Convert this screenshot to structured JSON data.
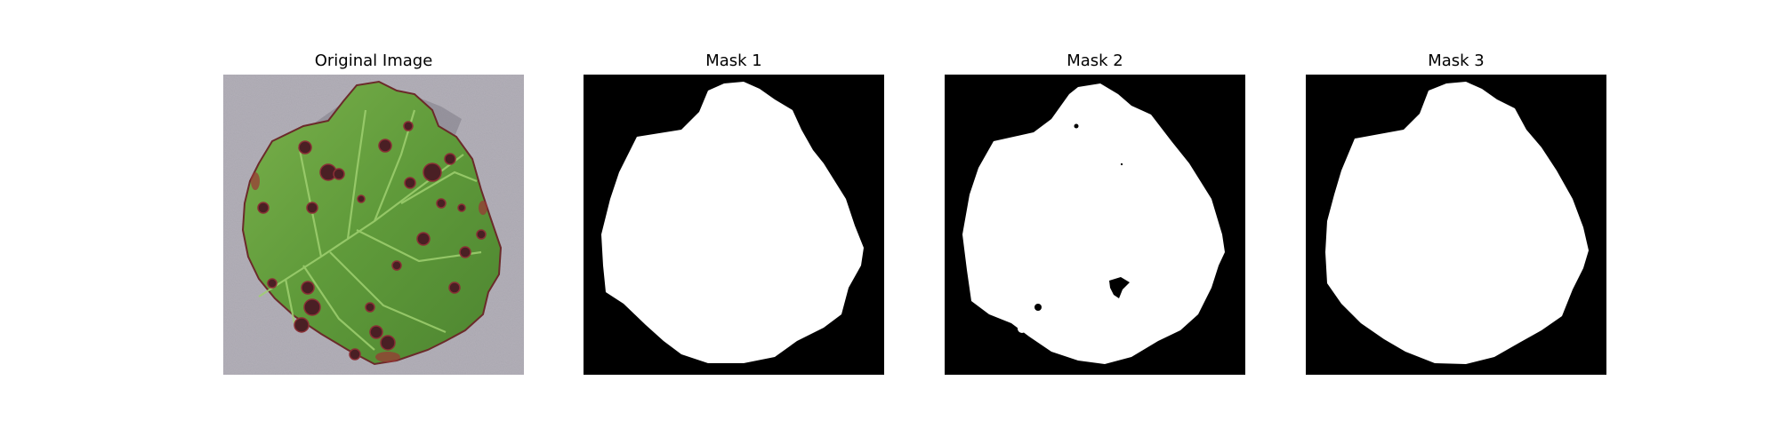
{
  "figure": {
    "panels": [
      {
        "title": "Original Image",
        "kind": "photo"
      },
      {
        "title": "Mask 1",
        "kind": "mask"
      },
      {
        "title": "Mask 2",
        "kind": "mask"
      },
      {
        "title": "Mask 3",
        "kind": "mask"
      }
    ]
  },
  "colors": {
    "background": "#ffffff",
    "mask_background": "#000000",
    "mask_foreground": "#ffffff",
    "photo_background": "#b2afb8",
    "leaf_green": "#5f9a3a",
    "leaf_dark": "#3f6f25",
    "leaf_highlight": "#8fc060",
    "lesion": "#4a1f24",
    "lesion_edge": "#8a2f35"
  }
}
